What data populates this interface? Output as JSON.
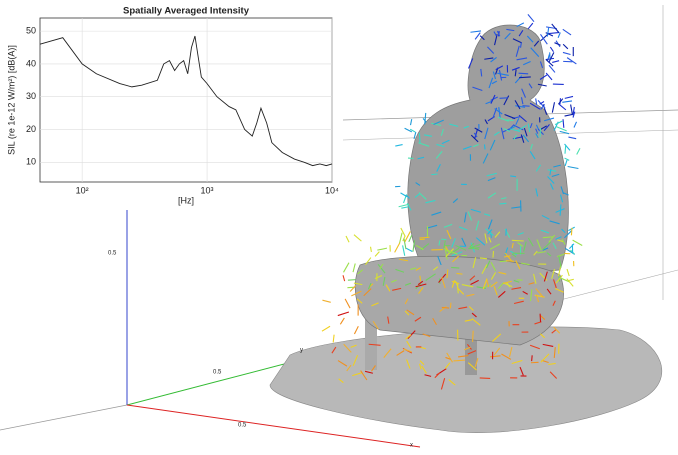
{
  "chart_data": {
    "type": "line",
    "title": "Spatially Averaged Intensity",
    "xlabel": "[Hz]",
    "ylabel": "SIL (re 1e-12 W/m²) [dB(A)]",
    "x": [
      46,
      70,
      100,
      130,
      200,
      250,
      300,
      400,
      450,
      500,
      550,
      600,
      650,
      700,
      750,
      800,
      850,
      900,
      1000,
      1200,
      1500,
      1700,
      2000,
      2300,
      2500,
      2700,
      3000,
      3300,
      4000,
      5000,
      6000,
      7000,
      8000,
      9000,
      10000
    ],
    "values": [
      46,
      48,
      40,
      37,
      34,
      33,
      33.5,
      35,
      40,
      41,
      38,
      40,
      41,
      37,
      45,
      48.5,
      42,
      36,
      34,
      30,
      27,
      26,
      20,
      18,
      22,
      26.5,
      22,
      16,
      13,
      11,
      10,
      9,
      9.5,
      9,
      9.5
    ],
    "color": "#222222",
    "xlog": true,
    "xlim": [
      46,
      10000
    ],
    "xticks": [
      {
        "value": 100,
        "label": "10²"
      },
      {
        "value": 1000,
        "label": "10³"
      },
      {
        "value": 10000,
        "label": "10⁴"
      }
    ],
    "ylim": [
      4,
      54
    ],
    "yticks": [
      10,
      20,
      30,
      40,
      50
    ],
    "grid": true
  },
  "scene": {
    "axis_labels": [
      "0.5",
      "0.5",
      "0.5",
      "y",
      "x"
    ]
  }
}
